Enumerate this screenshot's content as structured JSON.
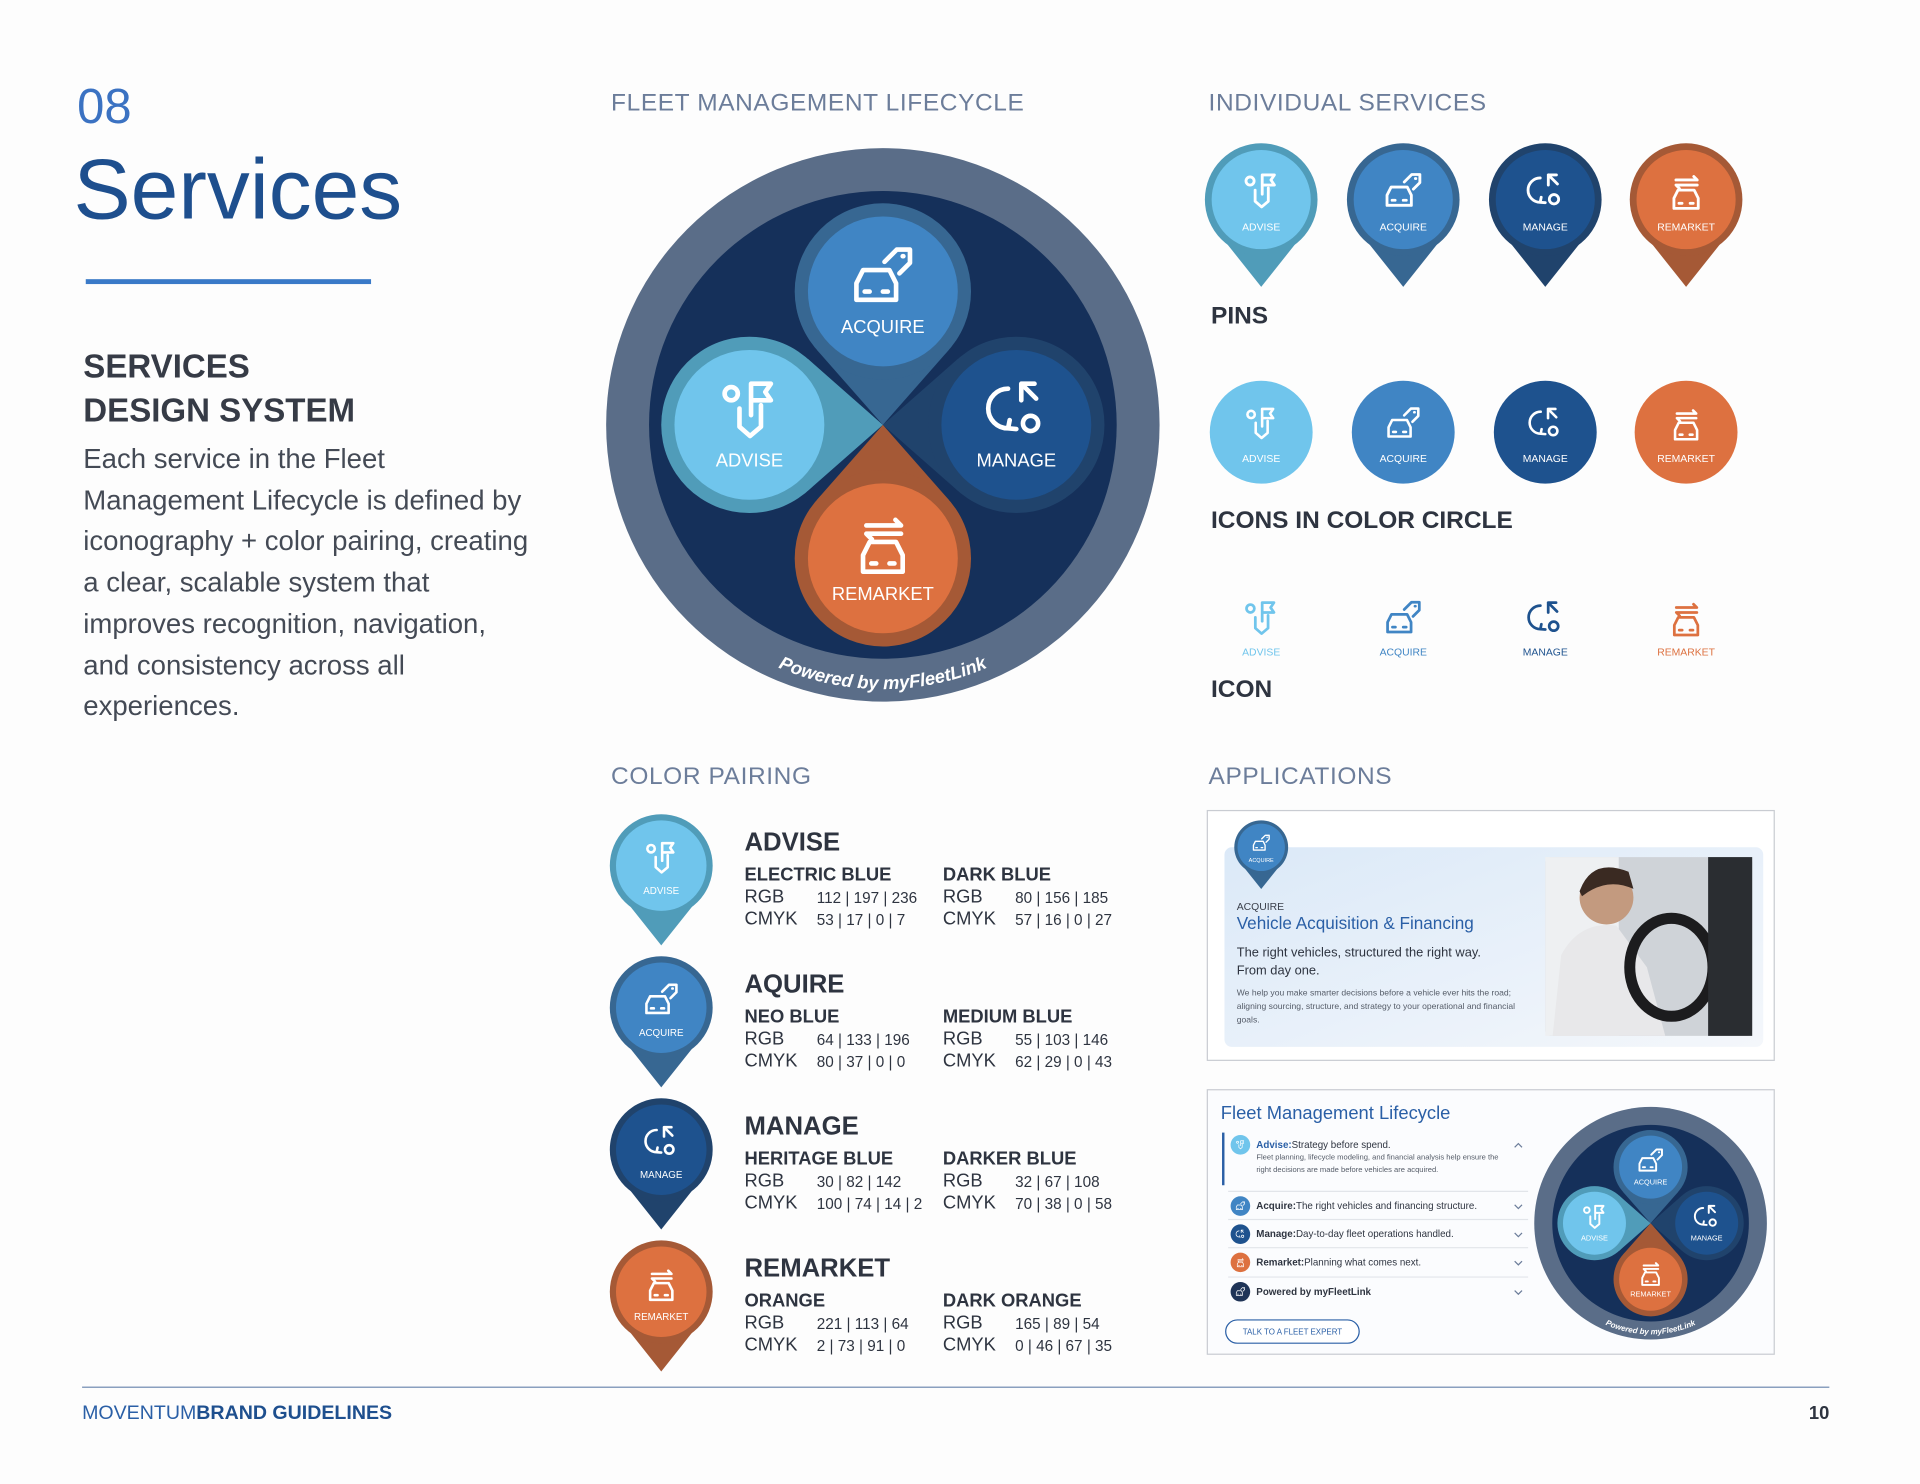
{
  "header": {
    "number": "08",
    "title": "Services"
  },
  "intro": {
    "heading_lines": [
      "SERVICES",
      "DESIGN SYSTEM"
    ],
    "body": "Each service in the Fleet Management Lifecycle is defined by iconography + color pairing, creating a clear, scalable system that improves recognition, navigation, and consistency across all experiences."
  },
  "service_names": [
    "ADVISE",
    "ACQUIRE",
    "MANAGE",
    "REMARKET"
  ],
  "lifecycle": {
    "title": "FLEET MANAGEMENT LIFECYCLE",
    "ring_text": "Powered by myFleetLink"
  },
  "individual": {
    "title": "INDIVIDUAL SERVICES",
    "row_labels": [
      "PINS",
      "ICONS IN COLOR CIRCLE",
      "ICON"
    ]
  },
  "color_pairing": {
    "title": "COLOR PAIRING",
    "rgb_label": "RGB",
    "cmyk_label": "CMYK",
    "items": [
      {
        "name": "ADVISE",
        "colors": [
          {
            "name": "ELECTRIC BLUE",
            "rgb": "112 | 197 | 236",
            "cmyk": "53 | 17 | 0 | 7"
          },
          {
            "name": "DARK BLUE",
            "rgb": "80 | 156 | 185",
            "cmyk": "57 | 16 | 0 | 27"
          }
        ]
      },
      {
        "name": "AQUIRE",
        "colors": [
          {
            "name": "NEO BLUE",
            "rgb": "64 | 133 | 196",
            "cmyk": "80 | 37 | 0 | 0"
          },
          {
            "name": "MEDIUM BLUE",
            "rgb": "55 | 103 | 146",
            "cmyk": "62 | 29 | 0 | 43"
          }
        ]
      },
      {
        "name": "MANAGE",
        "colors": [
          {
            "name": "HERITAGE BLUE",
            "rgb": "30 | 82 | 142",
            "cmyk": "100 | 74 | 14 | 2"
          },
          {
            "name": "DARKER BLUE",
            "rgb": "32 | 67 | 108",
            "cmyk": "70 | 38 | 0 | 58"
          }
        ]
      },
      {
        "name": "REMARKET",
        "colors": [
          {
            "name": "ORANGE",
            "rgb": "221 | 113 | 64",
            "cmyk": "2 | 73 | 91 | 0"
          },
          {
            "name": "DARK ORANGE",
            "rgb": "165 | 89 | 54",
            "cmyk": "0 | 46 | 67 | 35"
          }
        ]
      }
    ]
  },
  "applications": {
    "title": "APPLICATIONS",
    "card1": {
      "title": "Vehicle Acquisition & Financing",
      "lead": "The right vehicles, structured the right way. From day one.",
      "detail": "We help you make smarter decisions before a vehicle ever hits the road; aligning sourcing, structure, and strategy to your operational and financial goals."
    },
    "card2": {
      "title": "Fleet Management Lifecycle",
      "items": [
        {
          "label": "Advise:",
          "text": "Strategy before spend.",
          "detail": "Fleet planning, lifecycle modeling, and financial analysis help ensure the right decisions are made before vehicles are acquired."
        },
        {
          "label": "Acquire:",
          "text": "The right vehicles and financing structure."
        },
        {
          "label": "Manage:",
          "text": "Day-to-day fleet operations handled."
        },
        {
          "label": "Remarket:",
          "text": "Planning what comes next."
        },
        {
          "label": "Powered by myFleetLink"
        }
      ],
      "button": "TALK TO A FLEET EXPERT"
    }
  },
  "footer": {
    "brand": "MOVENTUM",
    "document": "BRAND GUIDELINES",
    "page": "10"
  }
}
